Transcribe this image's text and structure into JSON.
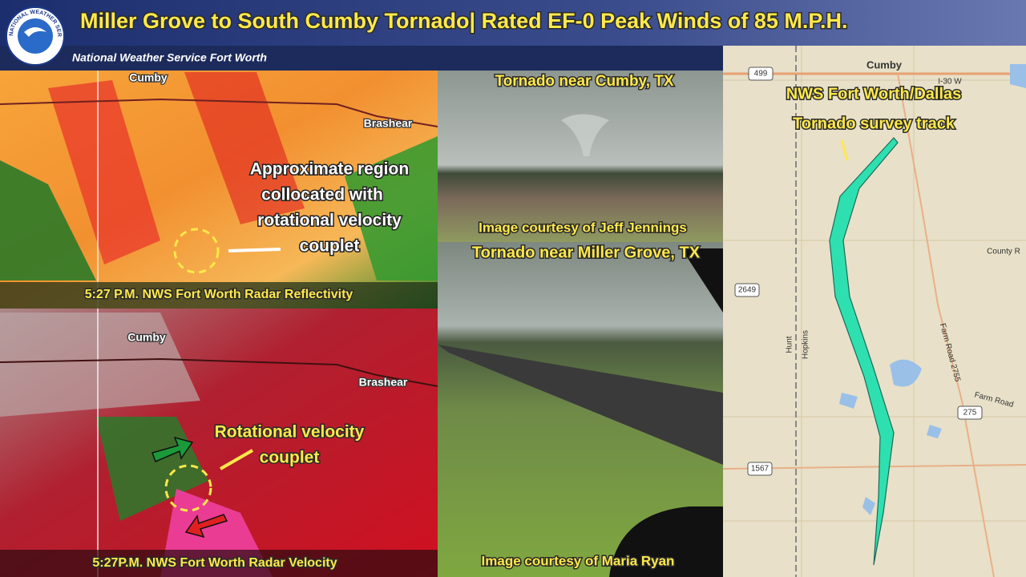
{
  "header": {
    "title": "Miller Grove to South Cumby Tornado| Rated EF-0 Peak Winds of 85 M.P.H.",
    "subtitle": "National Weather Service Fort Worth",
    "logo_text": "NATIONAL WEATHER SERVICE"
  },
  "reflectivity": {
    "towns": [
      "Cumby",
      "Brashear"
    ],
    "annotation": [
      "Approximate region",
      "collocated with",
      "rotational velocity",
      "couplet"
    ],
    "caption": "5:27 P.M. NWS Fort Worth Radar Reflectivity"
  },
  "velocity": {
    "towns": [
      "Cumby",
      "Brashear"
    ],
    "annotation": [
      "Rotational velocity",
      "couplet"
    ],
    "caption": "5:27P.M. NWS Fort Worth Radar Velocity"
  },
  "photos": [
    {
      "title": "Tornado near Cumby, TX",
      "credit": "Image courtesy of Jeff Jennings"
    },
    {
      "title": "Tornado near Miller Grove, TX",
      "credit": "Image courtesy of Maria Ryan"
    }
  ],
  "map": {
    "town": "Cumby",
    "title": [
      "NWS Fort Worth/Dallas",
      "Tornado survey track"
    ],
    "roads": [
      "499",
      "I-30 W",
      "2649",
      "1567",
      "275",
      "County R",
      "Farm Road 2755",
      "Farm Road"
    ],
    "counties": [
      "Hunt",
      "Hopkins"
    ]
  }
}
